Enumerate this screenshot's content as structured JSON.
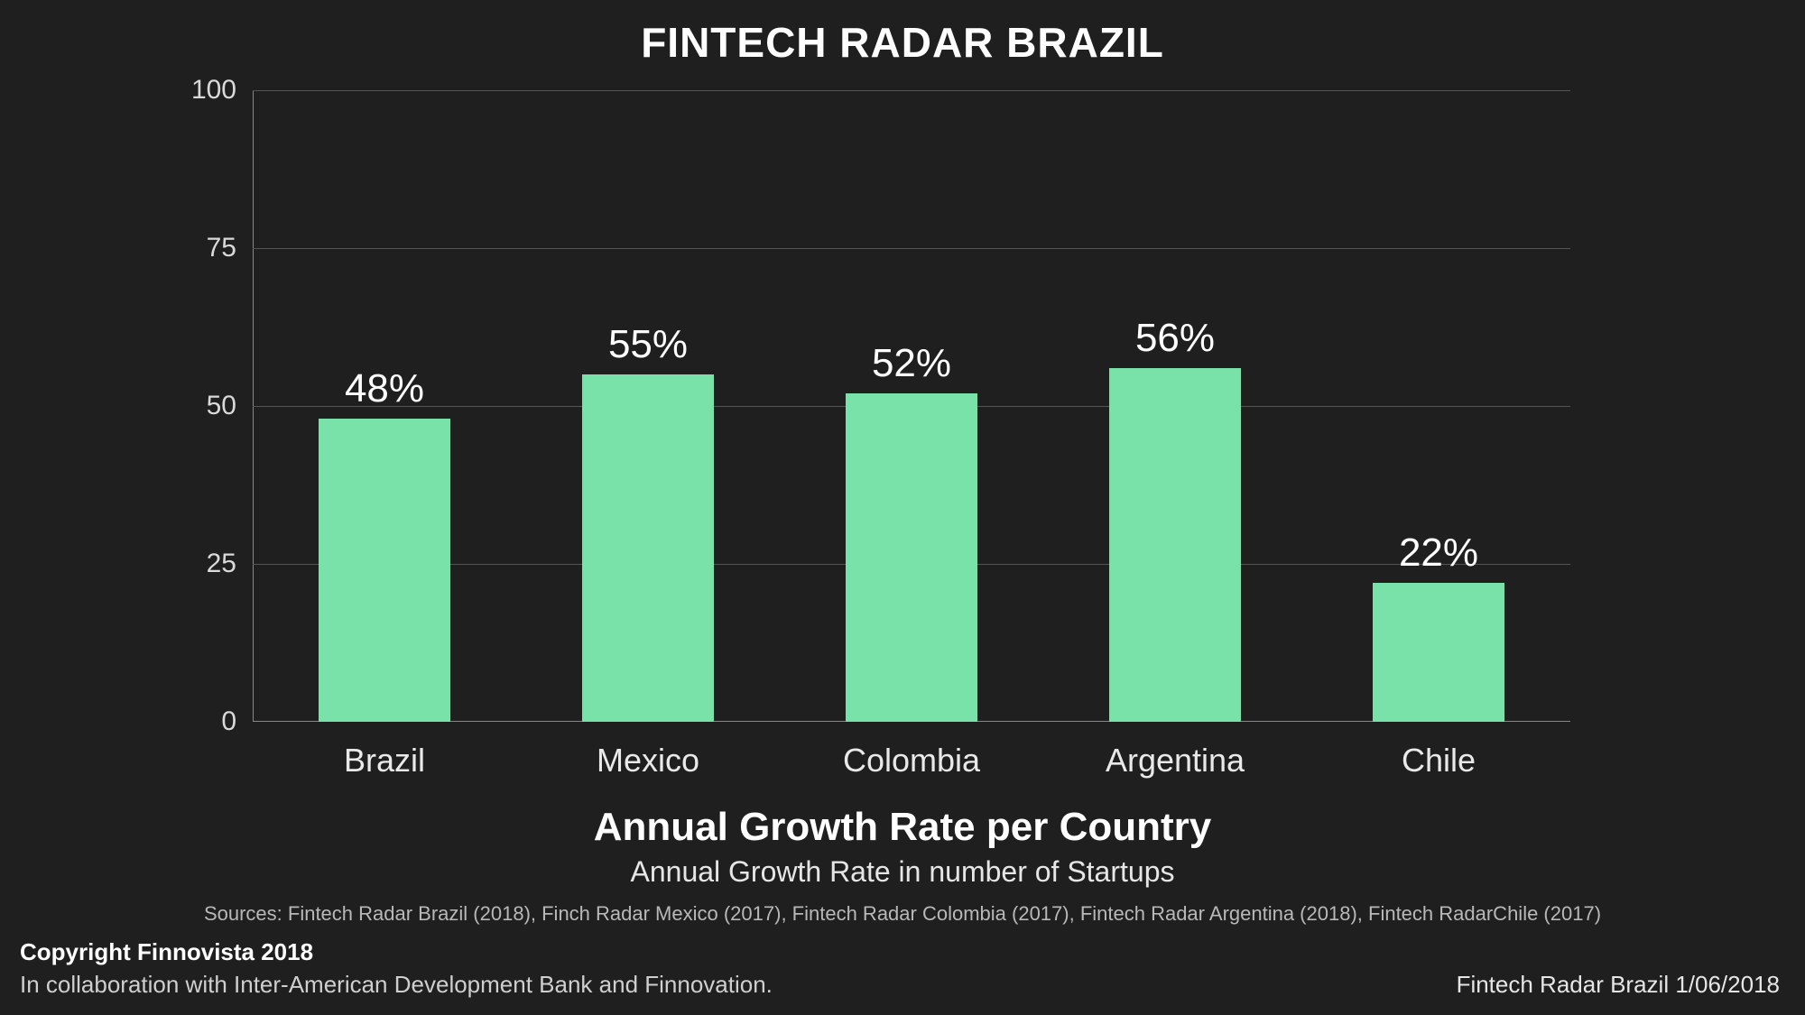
{
  "title": {
    "text": "FINTECH RADAR BRAZIL",
    "fontsize": 46,
    "color": "#ffffff",
    "weight": 800
  },
  "chart": {
    "type": "bar",
    "background_color": "#1f1f1f",
    "grid_color": "#555555",
    "axis_color": "#888888",
    "ylim": [
      0,
      100
    ],
    "ytick_step": 25,
    "yticks": [
      {
        "value": 0,
        "label": "0"
      },
      {
        "value": 25,
        "label": "25"
      },
      {
        "value": 50,
        "label": "50"
      },
      {
        "value": 75,
        "label": "75"
      },
      {
        "value": 100,
        "label": "100"
      }
    ],
    "ytick_fontsize": 30,
    "xlabel_fontsize": 36,
    "value_label_fontsize": 44,
    "bar_width_ratio": 0.5,
    "bar_color": "#78e2a8",
    "categories": [
      "Brazil",
      "Mexico",
      "Colombia",
      "Argentina",
      "Chile"
    ],
    "values": [
      48,
      55,
      52,
      56,
      22
    ],
    "value_labels": [
      "48%",
      "55%",
      "52%",
      "56%",
      "22%"
    ]
  },
  "subtitle": {
    "text": "Annual Growth Rate per Country",
    "fontsize": 44,
    "color": "#ffffff",
    "weight": 800
  },
  "subtitle2": {
    "text": "Annual Growth Rate in number of Startups",
    "fontsize": 32,
    "color": "#e6e6e6",
    "weight": 500
  },
  "sources": {
    "text": "Sources: Fintech Radar Brazil  (2018), Finch Radar Mexico (2017), Fintech Radar Colombia (2017), Fintech Radar Argentina (2018), Fintech RadarChile (2017)",
    "fontsize": 22,
    "color": "#b8b8b8"
  },
  "footer": {
    "copyright": "Copyright Finnovista 2018",
    "copyright_fontsize": 26,
    "collab": "In collaboration with Inter-American Development Bank and Finnovation.",
    "collab_fontsize": 26,
    "right": "Fintech Radar Brazil 1/06/2018",
    "right_fontsize": 26
  }
}
